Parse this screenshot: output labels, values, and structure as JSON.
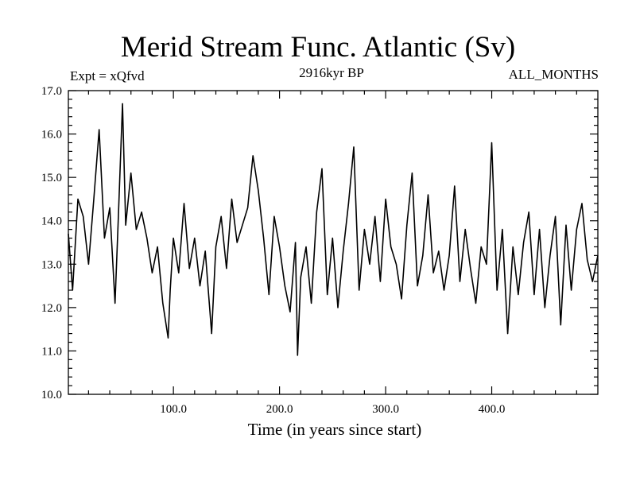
{
  "chart_data": {
    "type": "line",
    "title": "Merid Stream Func. Atlantic (Sv)",
    "subtitle_left": "Expt = xQfvd",
    "subtitle_center": "2916kyr BP",
    "subtitle_right": "ALL_MONTHS",
    "xlabel": "Time (in years since start)",
    "ylabel": "",
    "xlim": [
      1,
      500
    ],
    "ylim": [
      10.0,
      17.0
    ],
    "xticks": [
      100,
      200,
      300,
      400
    ],
    "xtick_labels": [
      "100.0",
      "200.0",
      "300.0",
      "400.0"
    ],
    "yticks": [
      10,
      11,
      12,
      13,
      14,
      15,
      16,
      17
    ],
    "ytick_labels": [
      "10.0",
      "11.0",
      "12.0",
      "13.0",
      "14.0",
      "15.0",
      "16.0",
      "17.0"
    ],
    "series": [
      {
        "name": "Merid Stream Func. Atlantic",
        "color": "#000000",
        "x": [
          1,
          5,
          10,
          15,
          20,
          25,
          30,
          35,
          40,
          45,
          48,
          52,
          55,
          60,
          65,
          70,
          75,
          80,
          85,
          90,
          95,
          97,
          100,
          105,
          110,
          115,
          120,
          125,
          130,
          136,
          140,
          145,
          150,
          155,
          160,
          165,
          170,
          175,
          180,
          185,
          190,
          195,
          200,
          205,
          210,
          215,
          217,
          220,
          225,
          230,
          235,
          240,
          245,
          250,
          255,
          260,
          265,
          270,
          275,
          280,
          285,
          290,
          295,
          300,
          305,
          310,
          315,
          320,
          325,
          330,
          335,
          340,
          345,
          350,
          355,
          360,
          365,
          370,
          375,
          380,
          385,
          390,
          395,
          400,
          405,
          410,
          415,
          420,
          425,
          430,
          435,
          440,
          445,
          450,
          455,
          460,
          465,
          470,
          475,
          480,
          485,
          490,
          495,
          500
        ],
        "values": [
          13.7,
          12.4,
          14.5,
          14.1,
          13.0,
          14.5,
          16.1,
          13.6,
          14.3,
          12.1,
          14.0,
          16.7,
          13.9,
          15.1,
          13.8,
          14.2,
          13.6,
          12.8,
          13.4,
          12.1,
          11.3,
          12.4,
          13.6,
          12.8,
          14.4,
          12.9,
          13.6,
          12.5,
          13.3,
          11.4,
          13.4,
          14.1,
          12.9,
          14.5,
          13.5,
          13.9,
          14.3,
          15.5,
          14.7,
          13.6,
          12.3,
          14.1,
          13.4,
          12.5,
          11.9,
          13.5,
          10.9,
          12.7,
          13.4,
          12.1,
          14.2,
          15.2,
          12.3,
          13.6,
          12.0,
          13.3,
          14.4,
          15.7,
          12.4,
          13.8,
          13.0,
          14.1,
          12.6,
          14.5,
          13.4,
          13.0,
          12.2,
          13.9,
          15.1,
          12.5,
          13.2,
          14.6,
          12.8,
          13.3,
          12.4,
          13.2,
          14.8,
          12.6,
          13.8,
          12.9,
          12.1,
          13.4,
          13.0,
          15.8,
          12.4,
          13.8,
          11.4,
          13.4,
          12.3,
          13.5,
          14.2,
          12.3,
          13.8,
          12.0,
          13.2,
          14.1,
          11.6,
          13.9,
          12.4,
          13.8,
          14.4,
          13.1,
          12.6,
          13.2
        ]
      }
    ]
  }
}
